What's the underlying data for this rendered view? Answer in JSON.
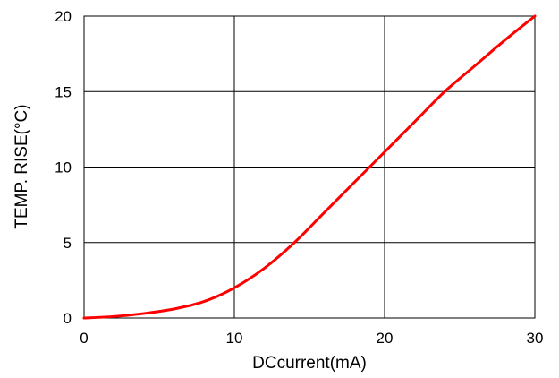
{
  "chart_data": {
    "type": "line",
    "xlabel": "DCcurrent(mA)",
    "ylabel": "TEMP. RISE(°C)",
    "xlim": [
      0,
      30
    ],
    "ylim": [
      0,
      20
    ],
    "x_ticks": [
      "0",
      "10",
      "20",
      "30"
    ],
    "y_ticks": [
      "0",
      "5",
      "10",
      "15",
      "20"
    ],
    "grid": true,
    "series": [
      {
        "color": "#ff0000",
        "x": [
          0,
          2,
          4,
          6,
          8,
          10,
          12,
          14,
          16,
          18,
          20,
          22,
          24,
          26,
          28,
          30
        ],
        "y": [
          0,
          0.1,
          0.3,
          0.6,
          1.1,
          2.0,
          3.3,
          5.0,
          7.0,
          9.0,
          11.0,
          13.0,
          15.0,
          16.7,
          18.4,
          20.0
        ]
      }
    ]
  }
}
